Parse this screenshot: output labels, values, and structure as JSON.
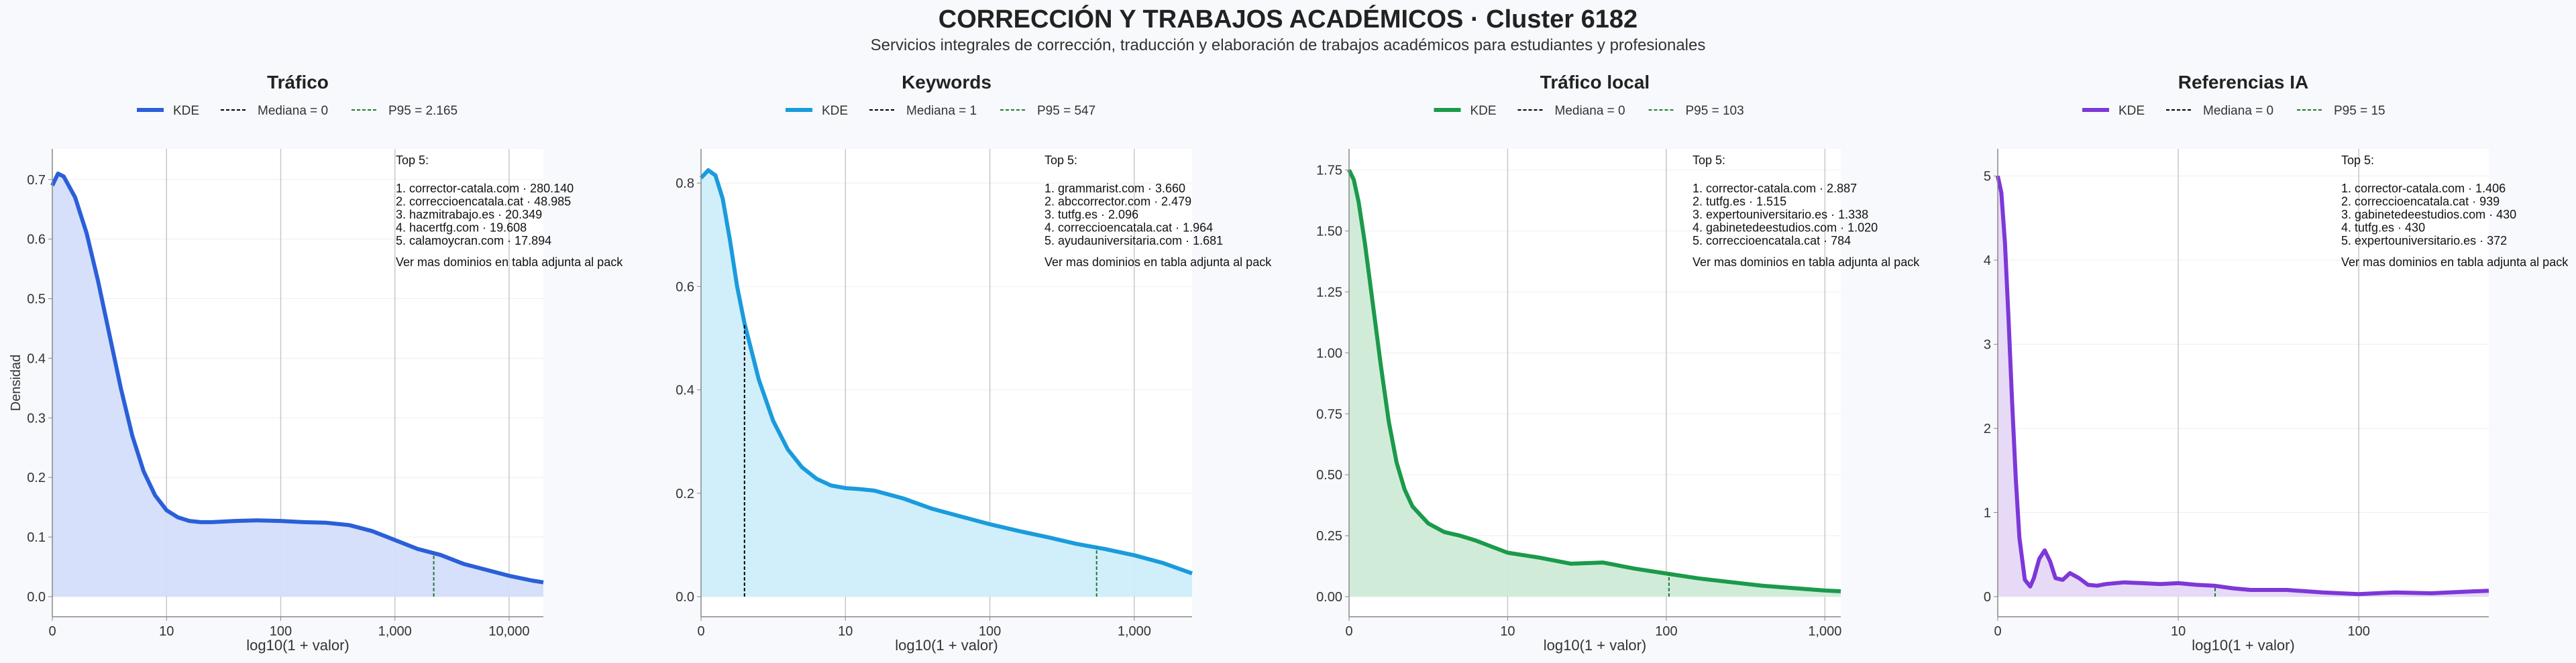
{
  "header": {
    "title": "CORRECCIÓN Y TRABAJOS ACADÉMICOS · Cluster 6182",
    "subtitle": "Servicios integrales de corrección, traducción y elaboración de trabajos académicos para estudiantes y profesionales"
  },
  "ylabel_shared": "Densidad",
  "legend_labels": {
    "kde": "KDE"
  },
  "chart_data": [
    {
      "type": "area",
      "title": "Tráfico",
      "xlabel": "log10(1 + valor)",
      "ylabel": "Densidad",
      "x_scale": "log10(1+x)",
      "xlim_log": [
        0,
        4.3
      ],
      "ylim": [
        0,
        0.72
      ],
      "xticks": [
        0,
        1,
        2,
        3,
        4
      ],
      "xtick_labels": [
        "0",
        "10",
        "100",
        "1,000",
        "10,000"
      ],
      "yticks": [
        0,
        0.1,
        0.2,
        0.3,
        0.4,
        0.5,
        0.6,
        0.7
      ],
      "ytick_labels": [
        "0.0",
        "0.1",
        "0.2",
        "0.3",
        "0.4",
        "0.5",
        "0.6",
        "0.7"
      ],
      "color": "#2b5fd9",
      "fill": "#d4defa",
      "median": {
        "label": "Mediana = 0",
        "value_log": 0,
        "color": "#000000"
      },
      "p95": {
        "label": "P95 = 2.165",
        "value_log": 3.34,
        "color": "#1f7a33"
      },
      "kde": {
        "x": [
          0,
          0.05,
          0.1,
          0.2,
          0.3,
          0.4,
          0.5,
          0.6,
          0.7,
          0.8,
          0.9,
          1.0,
          1.1,
          1.2,
          1.3,
          1.4,
          1.5,
          1.6,
          1.8,
          2.0,
          2.2,
          2.4,
          2.6,
          2.8,
          3.0,
          3.2,
          3.4,
          3.6,
          3.8,
          4.0,
          4.2,
          4.3
        ],
        "y": [
          0.69,
          0.71,
          0.705,
          0.67,
          0.61,
          0.53,
          0.44,
          0.35,
          0.27,
          0.21,
          0.17,
          0.145,
          0.133,
          0.127,
          0.125,
          0.125,
          0.126,
          0.127,
          0.128,
          0.127,
          0.125,
          0.124,
          0.12,
          0.11,
          0.095,
          0.08,
          0.07,
          0.055,
          0.045,
          0.035,
          0.027,
          0.024
        ]
      },
      "annotation": {
        "header": "Top 5:",
        "items": [
          "1. corrector-catala.com · 280.140",
          "2. correccioencatala.cat · 48.985",
          "3. hazmitrabajo.es · 20.349",
          "4. hacertfg.com · 19.608",
          "5. calamoycran.com · 17.894"
        ],
        "footer": "Ver mas dominios en tabla adjunta al pack"
      }
    },
    {
      "type": "area",
      "title": "Keywords",
      "xlabel": "log10(1 + valor)",
      "ylabel": "",
      "x_scale": "log10(1+x)",
      "xlim_log": [
        0,
        3.4
      ],
      "ylim": [
        0,
        0.83
      ],
      "xticks": [
        0,
        1,
        2,
        3
      ],
      "xtick_labels": [
        "0",
        "10",
        "100",
        "1,000"
      ],
      "yticks": [
        0,
        0.2,
        0.4,
        0.6,
        0.8
      ],
      "ytick_labels": [
        "0.0",
        "0.2",
        "0.4",
        "0.6",
        "0.8"
      ],
      "color": "#1a9bdc",
      "fill": "#cdeefb",
      "median": {
        "label": "Mediana = 1",
        "value_log": 0.301,
        "color": "#000000"
      },
      "p95": {
        "label": "P95 = 547",
        "value_log": 2.739,
        "color": "#1f7a33"
      },
      "kde": {
        "x": [
          0,
          0.05,
          0.1,
          0.15,
          0.2,
          0.25,
          0.3,
          0.4,
          0.5,
          0.6,
          0.7,
          0.8,
          0.9,
          1.0,
          1.1,
          1.2,
          1.4,
          1.6,
          1.8,
          2.0,
          2.2,
          2.4,
          2.6,
          2.8,
          3.0,
          3.2,
          3.4
        ],
        "y": [
          0.81,
          0.825,
          0.815,
          0.77,
          0.69,
          0.6,
          0.53,
          0.42,
          0.34,
          0.285,
          0.25,
          0.228,
          0.215,
          0.21,
          0.208,
          0.205,
          0.19,
          0.17,
          0.155,
          0.14,
          0.127,
          0.115,
          0.102,
          0.092,
          0.08,
          0.065,
          0.045
        ]
      },
      "annotation": {
        "header": "Top 5:",
        "items": [
          "1. grammarist.com · 3.660",
          "2. abccorrector.com · 2.479",
          "3. tutfg.es · 2.096",
          "4. correccioencatala.cat · 1.964",
          "5. ayudauniversitaria.com · 1.681"
        ],
        "footer": "Ver mas dominios en tabla adjunta al pack"
      }
    },
    {
      "type": "area",
      "title": "Tráfico local",
      "xlabel": "log10(1 + valor)",
      "ylabel": "",
      "x_scale": "log10(1+x)",
      "xlim_log": [
        0,
        3.1
      ],
      "ylim": [
        0,
        1.76
      ],
      "xticks": [
        0,
        1,
        2,
        3
      ],
      "xtick_labels": [
        "0",
        "10",
        "100",
        "1,000"
      ],
      "yticks": [
        0,
        0.25,
        0.5,
        0.75,
        1.0,
        1.25,
        1.5,
        1.75
      ],
      "ytick_labels": [
        "0.00",
        "0.25",
        "0.50",
        "0.75",
        "1.00",
        "1.25",
        "1.50",
        "1.75"
      ],
      "color": "#1b9a4b",
      "fill": "#cdebd7",
      "median": {
        "label": "Mediana = 0",
        "value_log": 0,
        "color": "#000000"
      },
      "p95": {
        "label": "P95 = 103",
        "value_log": 2.017,
        "color": "#1f7a33"
      },
      "kde": {
        "x": [
          0,
          0.03,
          0.06,
          0.1,
          0.15,
          0.2,
          0.25,
          0.3,
          0.35,
          0.4,
          0.5,
          0.6,
          0.7,
          0.8,
          0.9,
          1.0,
          1.2,
          1.4,
          1.6,
          1.8,
          2.0,
          2.2,
          2.4,
          2.6,
          2.8,
          3.0,
          3.1
        ],
        "y": [
          1.75,
          1.71,
          1.62,
          1.45,
          1.2,
          0.95,
          0.72,
          0.55,
          0.44,
          0.37,
          0.3,
          0.265,
          0.25,
          0.23,
          0.205,
          0.18,
          0.16,
          0.135,
          0.14,
          0.115,
          0.095,
          0.075,
          0.06,
          0.045,
          0.035,
          0.025,
          0.022
        ]
      },
      "annotation": {
        "header": "Top 5:",
        "items": [
          "1. corrector-catala.com · 2.887",
          "2. tutfg.es · 1.515",
          "3. expertouniversitario.es · 1.338",
          "4. gabinetedeestudios.com · 1.020",
          "5. correccioencatala.cat · 784"
        ],
        "footer": "Ver mas dominios en tabla adjunta al pack"
      }
    },
    {
      "type": "area",
      "title": "Referencias IA",
      "xlabel": "log10(1 + valor)",
      "ylabel": "",
      "x_scale": "log10(1+x)",
      "xlim_log": [
        0,
        2.72
      ],
      "ylim": [
        0,
        5.1
      ],
      "xticks": [
        0,
        1,
        2
      ],
      "xtick_labels": [
        "0",
        "10",
        "100"
      ],
      "yticks": [
        0,
        1,
        2,
        3,
        4,
        5
      ],
      "ytick_labels": [
        "0",
        "1",
        "2",
        "3",
        "4",
        "5"
      ],
      "color": "#7d38d8",
      "fill": "#e6d8f7",
      "median": {
        "label": "Mediana = 0",
        "value_log": 0,
        "color": "#000000"
      },
      "p95": {
        "label": "P95 = 15",
        "value_log": 1.204,
        "color": "#1f7a33"
      },
      "kde": {
        "x": [
          0,
          0.02,
          0.04,
          0.06,
          0.08,
          0.1,
          0.12,
          0.15,
          0.18,
          0.2,
          0.23,
          0.26,
          0.29,
          0.32,
          0.36,
          0.4,
          0.45,
          0.5,
          0.55,
          0.6,
          0.7,
          0.8,
          0.9,
          1.0,
          1.1,
          1.2,
          1.3,
          1.4,
          1.6,
          1.8,
          2.0,
          2.2,
          2.4,
          2.6,
          2.72
        ],
        "y": [
          5.0,
          4.8,
          4.2,
          3.3,
          2.3,
          1.4,
          0.7,
          0.2,
          0.12,
          0.22,
          0.45,
          0.55,
          0.42,
          0.22,
          0.2,
          0.28,
          0.22,
          0.14,
          0.13,
          0.15,
          0.17,
          0.16,
          0.15,
          0.16,
          0.14,
          0.13,
          0.1,
          0.08,
          0.08,
          0.05,
          0.03,
          0.05,
          0.04,
          0.06,
          0.07
        ]
      },
      "annotation": {
        "header": "Top 5:",
        "items": [
          "1. corrector-catala.com · 1.406",
          "2. correccioencatala.cat · 939",
          "3. gabinetedeestudios.com · 430",
          "4. tutfg.es · 430",
          "5. expertouniversitario.es · 372"
        ],
        "footer": "Ver mas dominios en tabla adjunta al pack"
      }
    }
  ]
}
